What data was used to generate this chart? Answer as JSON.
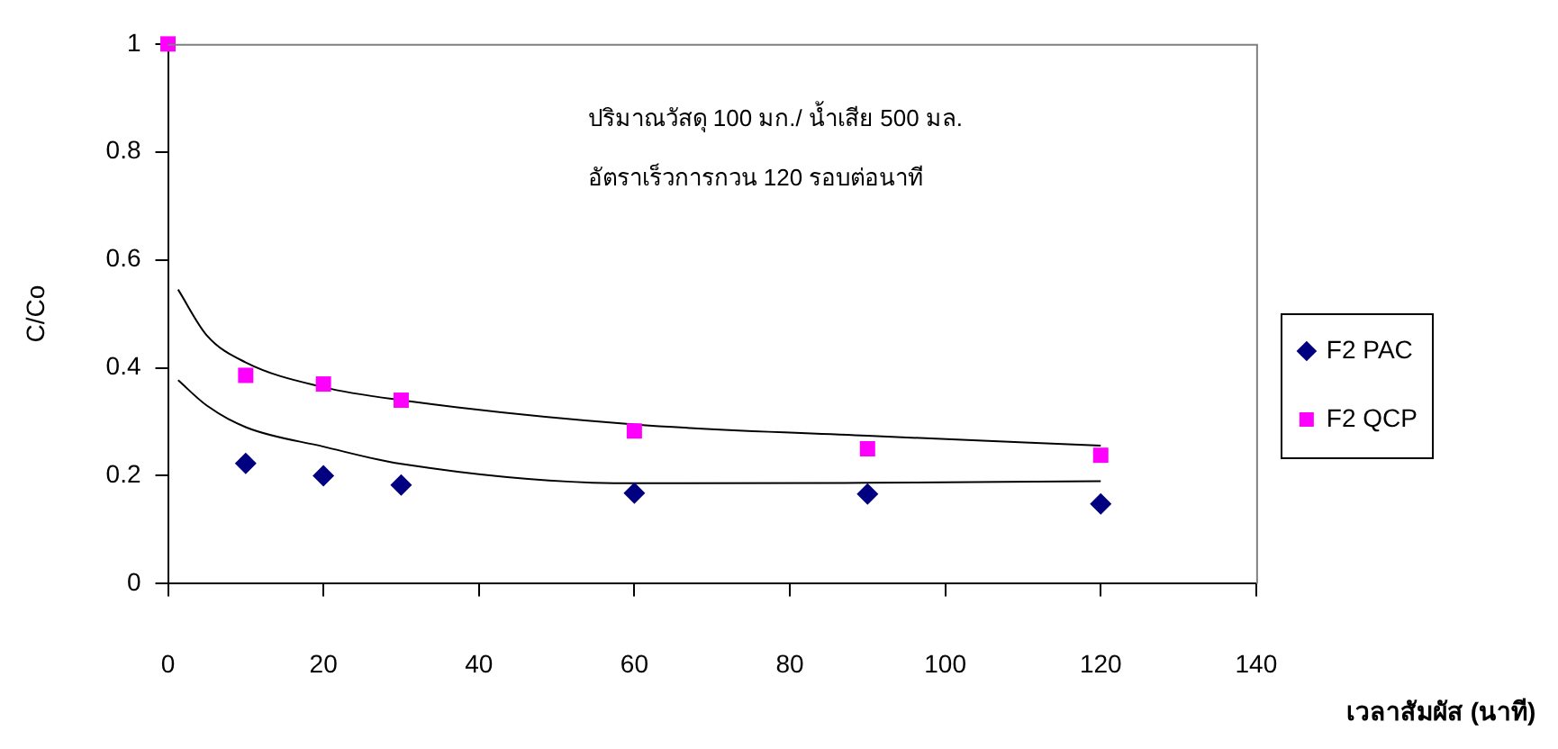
{
  "chart_data": {
    "type": "scatter",
    "xlabel": "เวลาสัมผัส (นาที)",
    "ylabel": "C/Co",
    "annotations": [
      "ปริมาณวัสดุ 100 มก./ น้ำเสีย 500 มล.",
      "อัตราเร็วการกวน 120 รอบต่อนาที"
    ],
    "xlim": [
      0,
      140
    ],
    "xticks": [
      0,
      20,
      40,
      60,
      80,
      100,
      120,
      140
    ],
    "ylim": [
      0,
      1
    ],
    "yticks": [
      0,
      0.2,
      0.4,
      0.6,
      0.8,
      1
    ],
    "grid": false,
    "legend": "right",
    "series": [
      {
        "name": "F2 PAC",
        "type": "scatter",
        "marker": "diamond",
        "color": "#000080",
        "x": [
          10,
          20,
          30,
          60,
          90,
          120
        ],
        "values": [
          0.223,
          0.2,
          0.183,
          0.168,
          0.166,
          0.148
        ]
      },
      {
        "name": "F2 QCP",
        "type": "scatter",
        "marker": "square",
        "color": "#ff00ff",
        "x": [
          0,
          10,
          20,
          30,
          60,
          90,
          120
        ],
        "values": [
          1,
          0.386,
          0.37,
          0.34,
          0.283,
          0.25,
          0.238
        ]
      },
      {
        "type": "line",
        "marker": "none",
        "color": "#000000",
        "x": [
          1.3,
          5,
          10,
          20,
          30,
          60,
          90,
          120
        ],
        "values": [
          0.377,
          0.33,
          0.29,
          0.254,
          0.222,
          0.186,
          0.187,
          0.19
        ]
      },
      {
        "type": "line",
        "marker": "none",
        "color": "#000000",
        "x": [
          1.3,
          5,
          10,
          20,
          30,
          60,
          90,
          120
        ],
        "values": [
          0.545,
          0.46,
          0.41,
          0.364,
          0.34,
          0.295,
          0.274,
          0.256
        ]
      }
    ]
  }
}
